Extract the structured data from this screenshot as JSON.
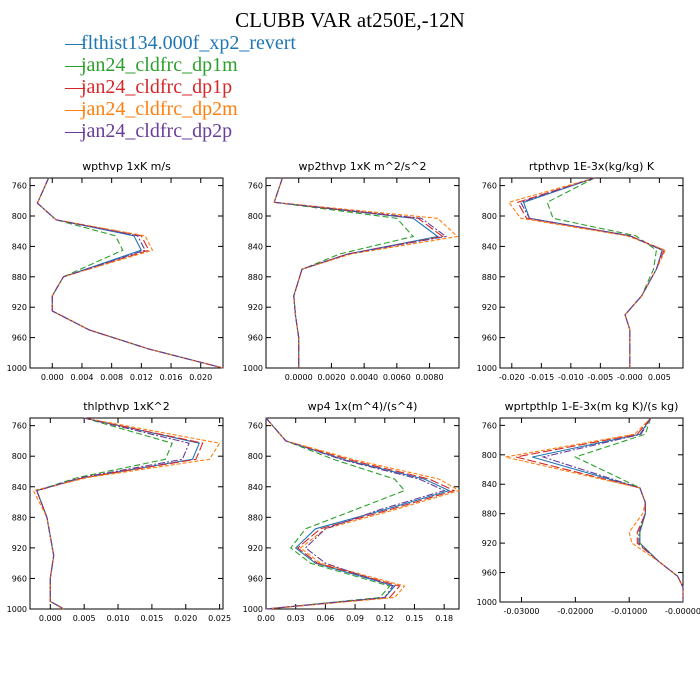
{
  "figure": {
    "title": "CLUBB VAR at250E,-12N",
    "legend": [
      {
        "label": "flthist134.000f_xp2_revert",
        "color": "#1f77b4"
      },
      {
        "label": "jan24_cldfrc_dp1m",
        "color": "#2ca02c"
      },
      {
        "label": "jan24_cldfrc_dp1p",
        "color": "#d62728"
      },
      {
        "label": "jan24_cldfrc_dp2m",
        "color": "#ff7f0e"
      },
      {
        "label": "jan24_cldfrc_dp2p",
        "color": "#6a3d9a"
      }
    ]
  },
  "chart_data": [
    {
      "type": "line",
      "title": "wpthvp   1xK m/s",
      "ylim": [
        1000,
        750
      ],
      "yticks": [
        "760",
        "800",
        "840",
        "880",
        "920",
        "960",
        "1000"
      ],
      "xlim": [
        -0.003,
        0.023
      ],
      "xticks": [
        "0.000",
        "0.004",
        "0.008",
        "0.012",
        "0.016",
        "0.020"
      ],
      "y": [
        750,
        783,
        805,
        826,
        845,
        880,
        905,
        925,
        950,
        975,
        1000
      ],
      "series": [
        {
          "name": "flthist134.000f_xp2_revert",
          "color": "#1f77b4",
          "values": [
            -0.0005,
            -0.002,
            0.0005,
            0.011,
            0.012,
            0.0015,
            0.0,
            0.0,
            0.005,
            0.013,
            0.023
          ]
        },
        {
          "name": "jan24_cldfrc_dp1m",
          "color": "#2ca02c",
          "values": [
            -0.0005,
            -0.002,
            0.0005,
            0.0085,
            0.0095,
            0.0015,
            0.0,
            0.0,
            0.005,
            0.013,
            0.023
          ]
        },
        {
          "name": "jan24_cldfrc_dp1p",
          "color": "#d62728",
          "values": [
            -0.0005,
            -0.002,
            0.0005,
            0.012,
            0.013,
            0.0015,
            0.0,
            0.0,
            0.005,
            0.013,
            0.023
          ]
        },
        {
          "name": "jan24_cldfrc_dp2m",
          "color": "#ff7f0e",
          "values": [
            -0.0005,
            -0.002,
            0.0005,
            0.0125,
            0.0135,
            0.0015,
            0.0,
            0.0,
            0.005,
            0.013,
            0.023
          ]
        },
        {
          "name": "jan24_cldfrc_dp2p",
          "color": "#6a3d9a",
          "values": [
            -0.0005,
            -0.002,
            0.0005,
            0.0115,
            0.0125,
            0.0015,
            0.0,
            0.0,
            0.005,
            0.013,
            0.023
          ]
        }
      ]
    },
    {
      "type": "line",
      "title": "wp2thvp   1xK m^2/s^2",
      "ylim": [
        1000,
        750
      ],
      "yticks": [
        "760",
        "800",
        "840",
        "880",
        "920",
        "960",
        "1000"
      ],
      "xlim": [
        -0.002,
        0.0098
      ],
      "xticks": [
        "0.0000",
        "0.0020",
        "0.0040",
        "0.0060",
        "0.0080"
      ],
      "y": [
        750,
        782,
        803,
        827,
        850,
        870,
        905,
        930,
        960,
        1000
      ],
      "series": [
        {
          "name": "flthist134.000f_xp2_revert",
          "color": "#1f77b4",
          "values": [
            -0.001,
            -0.0015,
            0.007,
            0.0085,
            0.003,
            0.0002,
            -0.0003,
            -0.0002,
            0.0,
            0.0
          ]
        },
        {
          "name": "jan24_cldfrc_dp1m",
          "color": "#2ca02c",
          "values": [
            -0.001,
            -0.0015,
            0.006,
            0.007,
            0.0025,
            0.0002,
            -0.0003,
            -0.0002,
            0.0,
            0.0
          ]
        },
        {
          "name": "jan24_cldfrc_dp1p",
          "color": "#d62728",
          "values": [
            -0.001,
            -0.0015,
            0.0073,
            0.0088,
            0.003,
            0.0002,
            -0.0003,
            -0.0002,
            0.0,
            0.0
          ]
        },
        {
          "name": "jan24_cldfrc_dp2m",
          "color": "#ff7f0e",
          "values": [
            -0.001,
            -0.0015,
            0.0085,
            0.0097,
            0.0032,
            0.0002,
            -0.0003,
            -0.0002,
            0.0,
            0.0
          ]
        },
        {
          "name": "jan24_cldfrc_dp2p",
          "color": "#6a3d9a",
          "values": [
            -0.001,
            -0.0015,
            0.0075,
            0.009,
            0.003,
            0.0002,
            -0.0003,
            -0.0002,
            0.0,
            0.0
          ]
        }
      ]
    },
    {
      "type": "line",
      "title": "rtpthvp   1E-3x(kg/kg) K",
      "ylim": [
        1000,
        750
      ],
      "yticks": [
        "760",
        "800",
        "840",
        "880",
        "920",
        "960",
        "1000"
      ],
      "xlim": [
        -0.022,
        0.009
      ],
      "xticks": [
        "-0.020",
        "-0.015",
        "-0.010",
        "-0.005",
        "-0.000",
        "0.005"
      ],
      "y": [
        750,
        782,
        803,
        826,
        845,
        870,
        905,
        930,
        950,
        975,
        1000
      ],
      "series": [
        {
          "name": "flthist134.000f_xp2_revert",
          "color": "#1f77b4",
          "values": [
            -0.006,
            -0.018,
            -0.017,
            0.0,
            0.0055,
            0.0045,
            0.002,
            -0.0008,
            0.0,
            0.0,
            0.0
          ]
        },
        {
          "name": "jan24_cldfrc_dp1m",
          "color": "#2ca02c",
          "values": [
            -0.006,
            -0.014,
            -0.013,
            0.001,
            0.0045,
            0.004,
            0.002,
            -0.0008,
            0.0,
            0.0,
            0.0
          ]
        },
        {
          "name": "jan24_cldfrc_dp1p",
          "color": "#d62728",
          "values": [
            -0.006,
            -0.019,
            -0.0175,
            0.0,
            0.0058,
            0.0045,
            0.002,
            -0.0008,
            0.0,
            0.0,
            0.0
          ]
        },
        {
          "name": "jan24_cldfrc_dp2m",
          "color": "#ff7f0e",
          "values": [
            -0.006,
            -0.0205,
            -0.0185,
            -0.0005,
            0.006,
            0.0045,
            0.002,
            -0.0008,
            0.0,
            0.0,
            0.0
          ]
        },
        {
          "name": "jan24_cldfrc_dp2p",
          "color": "#6a3d9a",
          "values": [
            -0.006,
            -0.0185,
            -0.017,
            0.0,
            0.0055,
            0.0045,
            0.002,
            -0.0008,
            0.0,
            0.0,
            0.0
          ]
        }
      ]
    },
    {
      "type": "line",
      "title": "thlpthvp   1xK^2",
      "ylim": [
        1000,
        750
      ],
      "yticks": [
        "760",
        "800",
        "840",
        "880",
        "920",
        "960",
        "1000"
      ],
      "xlim": [
        -0.003,
        0.0255
      ],
      "xticks": [
        "0.000",
        "0.005",
        "0.010",
        "0.015",
        "0.020",
        "0.025"
      ],
      "y": [
        750,
        783,
        804,
        828,
        845,
        880,
        930,
        960,
        990,
        1000
      ],
      "series": [
        {
          "name": "flthist134.000f_xp2_revert",
          "color": "#1f77b4",
          "values": [
            0.005,
            0.022,
            0.021,
            0.005,
            -0.002,
            -0.0005,
            0.0005,
            0.0,
            0.0,
            0.002
          ]
        },
        {
          "name": "jan24_cldfrc_dp1m",
          "color": "#2ca02c",
          "values": [
            0.005,
            0.018,
            0.017,
            0.004,
            -0.002,
            -0.0005,
            0.0005,
            0.0,
            0.0,
            0.002
          ]
        },
        {
          "name": "jan24_cldfrc_dp1p",
          "color": "#d62728",
          "values": [
            0.005,
            0.0225,
            0.0215,
            0.005,
            -0.002,
            -0.0005,
            0.0005,
            0.0,
            0.0,
            0.002
          ]
        },
        {
          "name": "jan24_cldfrc_dp2m",
          "color": "#ff7f0e",
          "values": [
            0.005,
            0.025,
            0.0235,
            0.0055,
            -0.0025,
            -0.0005,
            0.0005,
            0.0,
            0.0,
            0.002
          ]
        },
        {
          "name": "jan24_cldfrc_dp2p",
          "color": "#6a3d9a",
          "values": [
            0.005,
            0.0205,
            0.0195,
            0.0045,
            -0.002,
            -0.0005,
            0.0005,
            0.0,
            0.0,
            0.002
          ]
        }
      ]
    },
    {
      "type": "line",
      "title": "wp4   1x(m^4)/(s^4)",
      "ylim": [
        1000,
        750
      ],
      "yticks": [
        "760",
        "800",
        "840",
        "880",
        "920",
        "960",
        "1000"
      ],
      "xlim": [
        0.0,
        0.195
      ],
      "xticks": [
        "0.00",
        "0.03",
        "0.06",
        "0.09",
        "0.12",
        "0.15",
        "0.18"
      ],
      "y": [
        750,
        780,
        805,
        830,
        845,
        870,
        895,
        920,
        940,
        970,
        985,
        1000
      ],
      "series": [
        {
          "name": "flthist134.000f_xp2_revert",
          "color": "#1f77b4",
          "values": [
            0.0,
            0.02,
            0.08,
            0.16,
            0.185,
            0.12,
            0.05,
            0.03,
            0.05,
            0.13,
            0.12,
            0.0
          ]
        },
        {
          "name": "jan24_cldfrc_dp1m",
          "color": "#2ca02c",
          "values": [
            0.0,
            0.02,
            0.07,
            0.13,
            0.14,
            0.09,
            0.04,
            0.025,
            0.045,
            0.125,
            0.115,
            0.0
          ]
        },
        {
          "name": "jan24_cldfrc_dp1p",
          "color": "#d62728",
          "values": [
            0.0,
            0.02,
            0.085,
            0.165,
            0.19,
            0.125,
            0.055,
            0.032,
            0.052,
            0.135,
            0.125,
            0.0
          ]
        },
        {
          "name": "jan24_cldfrc_dp2m",
          "color": "#ff7f0e",
          "values": [
            0.0,
            0.02,
            0.09,
            0.175,
            0.195,
            0.13,
            0.06,
            0.035,
            0.055,
            0.14,
            0.13,
            0.0
          ]
        },
        {
          "name": "jan24_cldfrc_dp2p",
          "color": "#6a3d9a",
          "values": [
            0.0,
            0.02,
            0.078,
            0.155,
            0.18,
            0.115,
            0.06,
            0.04,
            0.06,
            0.128,
            0.12,
            0.0
          ]
        }
      ]
    },
    {
      "type": "line",
      "title": "wprtpthlp   1-E-3x(m kg K)/(s kg)",
      "ylim": [
        1000,
        750
      ],
      "yticks": [
        "760",
        "800",
        "840",
        "880",
        "920",
        "960",
        "1000"
      ],
      "xlim": [
        -0.034,
        0.0
      ],
      "xticks": [
        "-0.03000",
        "-0.02000",
        "-0.01000",
        "-0.00000"
      ],
      "y": [
        750,
        772,
        803,
        845,
        865,
        880,
        905,
        920,
        945,
        965,
        980,
        1000
      ],
      "series": [
        {
          "name": "flthist134.000f_xp2_revert",
          "color": "#1f77b4",
          "values": [
            -0.006,
            -0.008,
            -0.028,
            -0.008,
            -0.007,
            -0.007,
            -0.008,
            -0.008,
            -0.0045,
            -0.001,
            0.0,
            0.0
          ]
        },
        {
          "name": "jan24_cldfrc_dp1m",
          "color": "#2ca02c",
          "values": [
            -0.006,
            -0.007,
            -0.02,
            -0.008,
            -0.007,
            -0.007,
            -0.008,
            -0.008,
            -0.0045,
            -0.001,
            0.0,
            0.0
          ]
        },
        {
          "name": "jan24_cldfrc_dp1p",
          "color": "#d62728",
          "values": [
            -0.006,
            -0.0085,
            -0.031,
            -0.008,
            -0.007,
            -0.007,
            -0.0085,
            -0.0085,
            -0.0045,
            -0.001,
            0.0,
            0.0
          ]
        },
        {
          "name": "jan24_cldfrc_dp2m",
          "color": "#ff7f0e",
          "values": [
            -0.006,
            -0.009,
            -0.033,
            -0.008,
            -0.007,
            -0.0075,
            -0.01,
            -0.0095,
            -0.0045,
            -0.001,
            0.0,
            0.0
          ]
        },
        {
          "name": "jan24_cldfrc_dp2p",
          "color": "#6a3d9a",
          "values": [
            -0.006,
            -0.0078,
            -0.026,
            -0.008,
            -0.007,
            -0.007,
            -0.0082,
            -0.0082,
            -0.0045,
            -0.001,
            0.0,
            0.0
          ]
        }
      ]
    }
  ]
}
